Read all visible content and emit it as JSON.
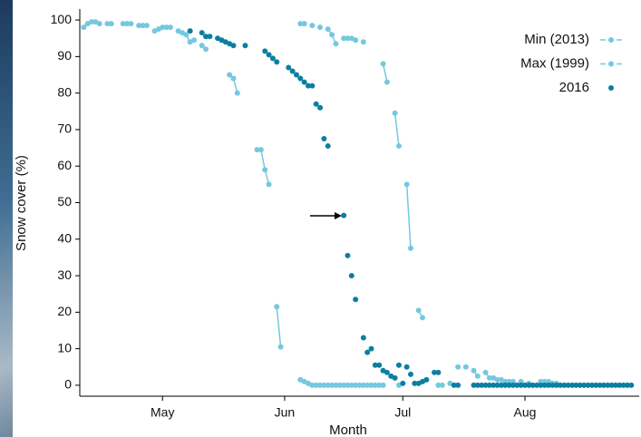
{
  "chart_data": {
    "type": "scatter",
    "xlabel": "Month",
    "ylabel": "Snow cover (%)",
    "xlim": [
      100,
      242
    ],
    "ylim": [
      -3,
      103
    ],
    "xticks": [
      {
        "value": 121,
        "label": "May"
      },
      {
        "value": 152,
        "label": "Jun"
      },
      {
        "value": 182,
        "label": "Jul"
      },
      {
        "value": 213,
        "label": "Aug"
      }
    ],
    "yticks": [
      0,
      10,
      20,
      30,
      40,
      50,
      60,
      70,
      80,
      90,
      100
    ],
    "legend": "upper right",
    "series": [
      {
        "name": "Min (2013)",
        "color": "#74c8df",
        "line": true,
        "x": [
          101,
          102,
          103,
          104,
          105,
          107,
          108,
          111,
          112,
          113,
          115,
          116,
          117,
          119,
          120,
          121,
          122,
          123,
          125,
          126,
          127,
          128,
          129,
          131,
          132,
          138,
          139,
          140,
          145,
          146,
          147,
          148,
          150,
          151,
          156,
          157,
          158,
          159,
          160,
          161,
          162,
          163,
          164,
          165,
          166,
          167,
          168,
          169,
          170,
          171,
          172,
          173,
          174,
          175,
          176,
          177,
          181
        ],
        "values": [
          98,
          99,
          99.5,
          99.5,
          99,
          99,
          99,
          99,
          99,
          99,
          98.5,
          98.5,
          98.5,
          97,
          97.5,
          98,
          98,
          98,
          97,
          96.5,
          96,
          94,
          94.5,
          93,
          92,
          85,
          84,
          80,
          64.5,
          64.5,
          59,
          55,
          21.5,
          10.5,
          1.5,
          1,
          0.5,
          0,
          0,
          0,
          0,
          0,
          0,
          0,
          0,
          0,
          0,
          0,
          0,
          0,
          0,
          0,
          0,
          0,
          0,
          0,
          0
        ]
      },
      {
        "name": "Max (1999)",
        "color": "#74c8df",
        "line": true,
        "x": [
          156,
          157,
          159,
          161,
          163,
          164,
          165,
          167,
          168,
          169,
          170,
          172,
          177,
          178,
          180,
          181,
          183,
          184,
          186,
          187,
          191,
          192,
          194,
          196,
          198,
          200,
          201,
          203,
          204,
          205,
          206,
          207,
          208,
          209,
          210,
          212,
          214,
          217,
          218,
          219,
          220,
          221
        ],
        "values": [
          99,
          99,
          98.5,
          98,
          97.5,
          96,
          93.5,
          95,
          95,
          95,
          94.5,
          94,
          88,
          83,
          74.5,
          65.5,
          55,
          37.5,
          20.5,
          18.5,
          0,
          0,
          0.5,
          5,
          5,
          4,
          2.5,
          3.5,
          2,
          2,
          1.5,
          1.5,
          1,
          1,
          1,
          1,
          0.5,
          1,
          1,
          1,
          0.5,
          0.5
        ]
      },
      {
        "name": "2016",
        "color": "#0b7fa0",
        "line": false,
        "x": [
          128,
          131,
          132,
          133,
          135,
          136,
          137,
          138,
          139,
          142,
          147,
          148,
          149,
          150,
          153,
          154,
          155,
          156,
          157,
          158,
          159,
          160,
          161,
          162,
          163,
          167,
          168,
          169,
          170,
          172,
          173,
          174,
          175,
          176,
          177,
          178,
          179,
          180,
          181,
          182,
          183,
          184,
          185,
          186,
          187,
          188,
          190,
          191,
          195,
          196,
          200,
          201,
          202,
          203,
          204,
          205,
          206,
          207,
          208,
          209,
          210,
          211,
          212,
          213,
          214,
          215,
          216,
          217,
          218,
          219,
          220,
          221,
          222,
          223,
          224,
          225,
          226,
          227,
          228,
          229,
          230,
          231,
          232,
          233,
          234,
          235,
          236,
          237,
          238,
          239,
          240
        ],
        "values": [
          97,
          96.5,
          95.5,
          95.5,
          95,
          94.5,
          94,
          93.5,
          93,
          93,
          91.5,
          90.5,
          89.5,
          88.5,
          87,
          86,
          85,
          84,
          83,
          82,
          82,
          77,
          76,
          67.5,
          65.5,
          46.5,
          35.5,
          30,
          23.5,
          13,
          9,
          10,
          5.5,
          5.5,
          4,
          3.5,
          2.5,
          2,
          5.5,
          0.5,
          5,
          3,
          0.5,
          0.5,
          1,
          1.5,
          3.5,
          3.5,
          0,
          0,
          0,
          0,
          0,
          0,
          0,
          0,
          0,
          0,
          0,
          0,
          0,
          0,
          0,
          0,
          0,
          0,
          0,
          0,
          0,
          0,
          0,
          0,
          0,
          0,
          0,
          0,
          0,
          0,
          0,
          0,
          0,
          0,
          0,
          0,
          0,
          0,
          0,
          0,
          0,
          0,
          0
        ]
      }
    ]
  }
}
